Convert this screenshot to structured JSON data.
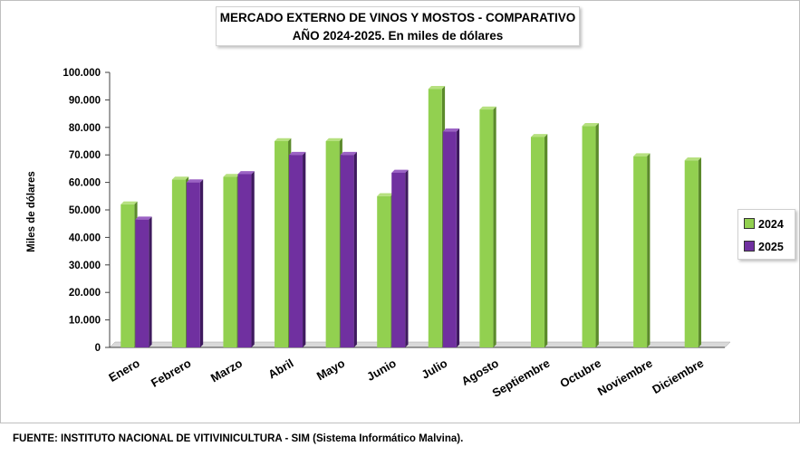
{
  "title_line1": "MERCADO EXTERNO DE VINOS Y MOSTOS - COMPARATIVO",
  "title_line2": "AÑO 2024-2025. En miles de dólares",
  "source": "FUENTE: INSTITUTO NACIONAL DE VITIVINICULTURA - SIM (Sistema Informático Malvina).",
  "colors": {
    "s2024": "#92d050",
    "s2024_side": "#5b8a2b",
    "s2024_top": "#b6e07f",
    "s2025": "#7030a0",
    "s2025_side": "#3e1a5e",
    "s2025_top": "#9b62c4"
  },
  "chart_data": {
    "type": "bar",
    "title": "MERCADO EXTERNO DE VINOS Y MOSTOS - COMPARATIVO AÑO 2024-2025. En miles de dólares",
    "xlabel": "",
    "ylabel": "Miles de dólares",
    "ylim": [
      0,
      100000
    ],
    "yticks": [
      "0",
      "10.000",
      "20.000",
      "30.000",
      "40.000",
      "50.000",
      "60.000",
      "70.000",
      "80.000",
      "90.000",
      "100.000"
    ],
    "ytick_values": [
      0,
      10000,
      20000,
      30000,
      40000,
      50000,
      60000,
      70000,
      80000,
      90000,
      100000
    ],
    "categories": [
      "Enero",
      "Febrero",
      "Marzo",
      "Abril",
      "Mayo",
      "Junio",
      "Julio",
      "Agosto",
      "Septiembre",
      "Octubre",
      "Noviembre",
      "Diciembre"
    ],
    "series": [
      {
        "name": "2024",
        "values": [
          52000,
          61000,
          62000,
          75000,
          75000,
          55000,
          94000,
          86500,
          76500,
          80500,
          69500,
          68000
        ]
      },
      {
        "name": "2025",
        "values": [
          46500,
          60000,
          63000,
          70000,
          70000,
          63500,
          78500,
          null,
          null,
          null,
          null,
          null
        ]
      }
    ],
    "legend": "right"
  }
}
